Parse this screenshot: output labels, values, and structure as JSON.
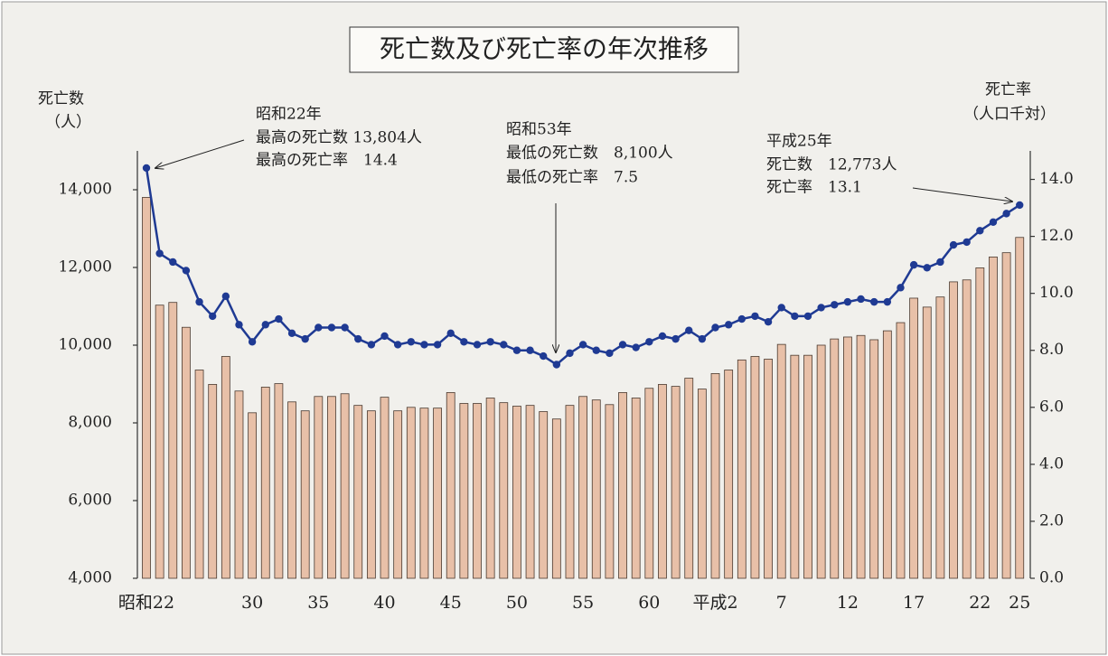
{
  "chart_data": {
    "type": "bar_line",
    "title": "死亡数及び死亡率の年次推移",
    "y_label": [
      "死亡数",
      "（人）"
    ],
    "y2_label": [
      "死亡率",
      "（人口千対）"
    ],
    "categories": [
      "昭和22",
      null,
      null,
      null,
      null,
      null,
      null,
      null,
      "30",
      null,
      null,
      null,
      null,
      "35",
      null,
      null,
      null,
      null,
      "40",
      null,
      null,
      null,
      null,
      "45",
      null,
      null,
      null,
      null,
      "50",
      null,
      null,
      null,
      null,
      "55",
      null,
      null,
      null,
      null,
      "60",
      null,
      null,
      null,
      null,
      "平成2",
      null,
      null,
      null,
      null,
      "7",
      null,
      null,
      null,
      null,
      "12",
      null,
      null,
      null,
      null,
      "17",
      null,
      null,
      null,
      null,
      "22",
      null,
      null,
      "25"
    ],
    "series": [
      {
        "type": "bar",
        "color": "#e8c0a8",
        "values": [
          13804,
          11030,
          11100,
          10460,
          9360,
          8990,
          9710,
          8820,
          8260,
          8920,
          9010,
          8540,
          8310,
          8680,
          8680,
          8750,
          8450,
          8310,
          8660,
          8310,
          8400,
          8380,
          8380,
          8780,
          8500,
          8500,
          8640,
          8520,
          8430,
          8450,
          8290,
          8100,
          8450,
          8680,
          8590,
          8470,
          8780,
          8640,
          8890,
          8990,
          8940,
          9150,
          8870,
          9270,
          9360,
          9620,
          9710,
          9640,
          10020,
          9740,
          9740,
          10000,
          10160,
          10210,
          10250,
          10140,
          10370,
          10580,
          11210,
          10980,
          11240,
          11630,
          11680,
          11990,
          12270,
          12380,
          12773
        ]
      },
      {
        "type": "line",
        "axis": "y2",
        "color": "#1f3a93",
        "values": [
          14.4,
          11.4,
          11.1,
          10.8,
          9.7,
          9.2,
          9.9,
          8.9,
          8.3,
          8.9,
          9.1,
          8.6,
          8.4,
          8.8,
          8.8,
          8.8,
          8.4,
          8.2,
          8.5,
          8.2,
          8.3,
          8.2,
          8.2,
          8.6,
          8.3,
          8.2,
          8.3,
          8.2,
          8.0,
          8.0,
          7.8,
          7.5,
          7.9,
          8.2,
          8.0,
          7.9,
          8.2,
          8.1,
          8.3,
          8.5,
          8.4,
          8.7,
          8.4,
          8.8,
          8.9,
          9.1,
          9.2,
          9.0,
          9.5,
          9.2,
          9.2,
          9.5,
          9.6,
          9.7,
          9.8,
          9.7,
          9.7,
          10.2,
          11.0,
          10.9,
          11.1,
          11.7,
          11.8,
          12.2,
          12.5,
          12.8,
          13.1
        ]
      }
    ],
    "ylim": [
      4000,
      15000
    ],
    "yticks": [
      {
        "value": 4000,
        "label": "4,000"
      },
      {
        "value": 6000,
        "label": "6,000"
      },
      {
        "value": 8000,
        "label": "8,000"
      },
      {
        "value": 10000,
        "label": "10,000"
      },
      {
        "value": 12000,
        "label": "12,000"
      },
      {
        "value": 14000,
        "label": "14,000"
      }
    ],
    "y2lim": [
      0,
      15
    ],
    "y2ticks": [
      {
        "value": 0,
        "label": "0.0"
      },
      {
        "value": 2,
        "label": "2.0"
      },
      {
        "value": 4,
        "label": "4.0"
      },
      {
        "value": 6,
        "label": "6.0"
      },
      {
        "value": 8,
        "label": "8.0"
      },
      {
        "value": 10,
        "label": "10.0"
      },
      {
        "value": 12,
        "label": "12.0"
      },
      {
        "value": 14,
        "label": "14.0"
      }
    ],
    "annotations": [
      {
        "lines": [
          "昭和22年",
          "最高の死亡数 13,804人",
          "最高の死亡率　14.4"
        ]
      },
      {
        "lines": [
          "昭和53年",
          "最低の死亡数　8,100人",
          "最低の死亡率　7.5"
        ]
      },
      {
        "lines": [
          "平成25年",
          "死亡数　12,773人",
          "死亡率　13.1"
        ]
      }
    ]
  }
}
